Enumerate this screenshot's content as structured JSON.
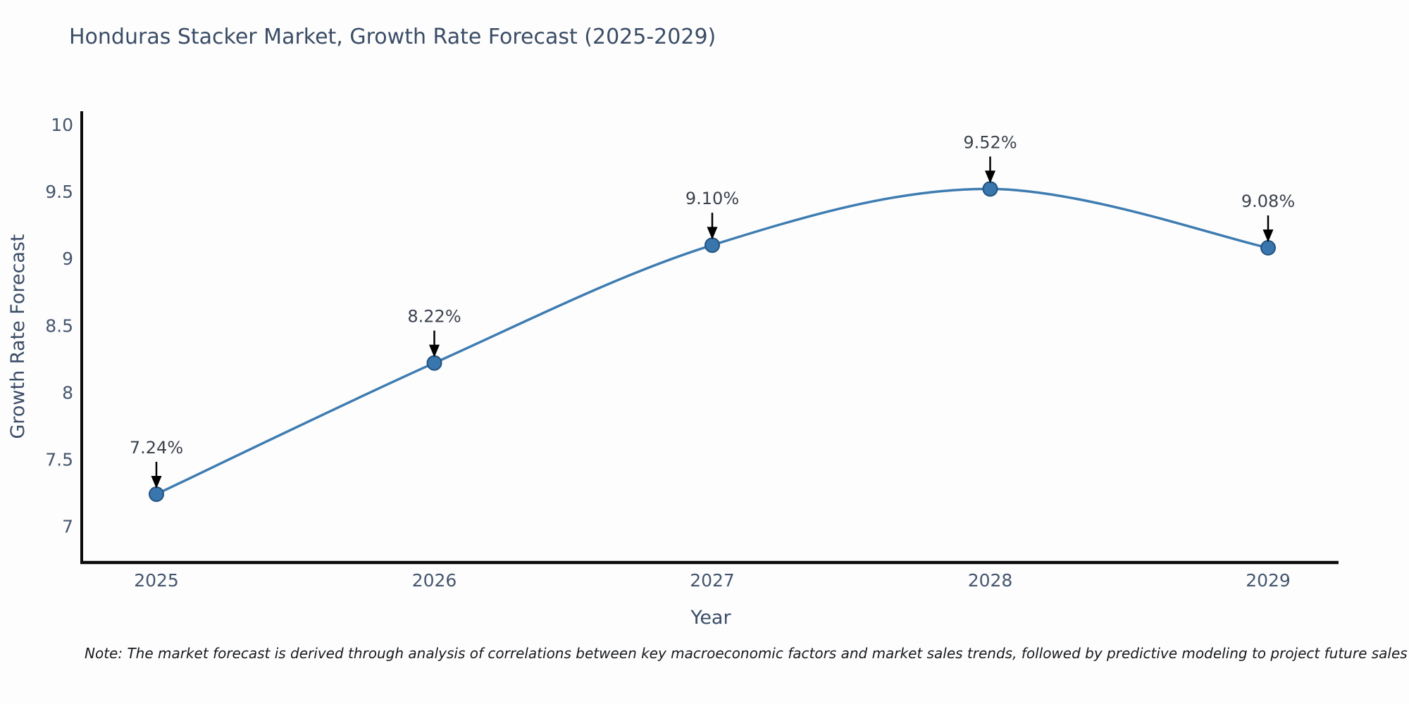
{
  "title": "Honduras Stacker Market, Growth Rate Forecast (2025-2029)",
  "note": "Note: The market forecast is derived through analysis of correlations between key macroeconomic factors and market sales trends, followed by predictive modeling to project future sales",
  "colors": {
    "line": "#3e7cb1",
    "marker_fill": "#3876ad",
    "marker_edge": "#25537e",
    "axis_line": "#0a0a0a",
    "title_text": "#3a4c66",
    "tick_text": "#46566e",
    "annotation_text": "#3c424d",
    "annotation_arrow": "#000000",
    "background": "#fdfdfd"
  },
  "chart_data": {
    "type": "line",
    "title": "Honduras Stacker Market, Growth Rate Forecast (2025-2029)",
    "xlabel": "Year",
    "ylabel": "Growth Rate Forecast",
    "x": [
      "2025",
      "2026",
      "2027",
      "2028",
      "2029"
    ],
    "series": [
      {
        "name": "Growth Rate Forecast",
        "values": [
          7.24,
          8.22,
          9.1,
          9.52,
          9.08
        ]
      }
    ],
    "point_labels": [
      "7.24%",
      "8.22%",
      "9.10%",
      "9.52%",
      "9.08%"
    ],
    "yticks": [
      7,
      7.5,
      8,
      8.5,
      9,
      9.5,
      10
    ],
    "ylim": [
      6.73,
      10.1
    ],
    "grid": false,
    "legend": "none",
    "line_style": "spline",
    "markers": true,
    "annotations": "percentage value label with downward black arrow above each data point"
  }
}
